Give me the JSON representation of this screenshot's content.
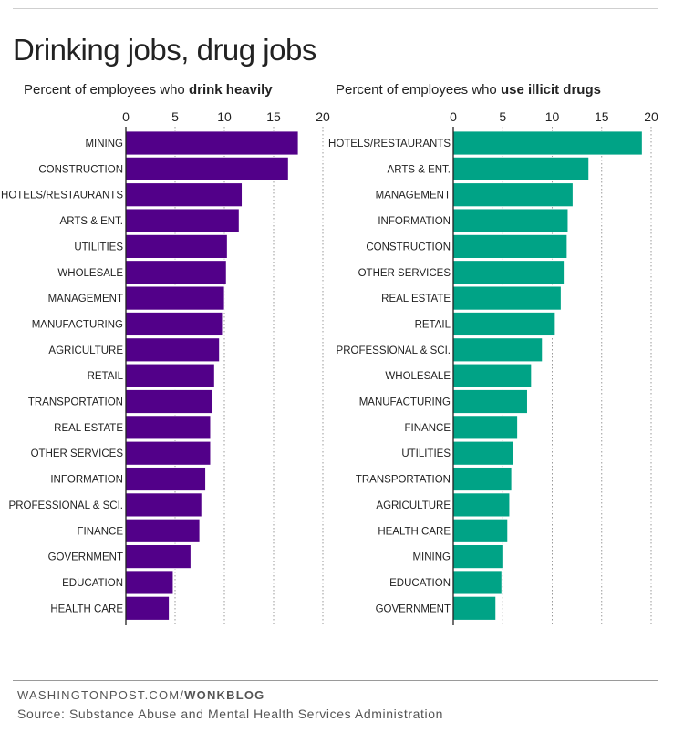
{
  "title": "Drinking jobs, drug jobs",
  "footer": {
    "site": "WASHINGTONPOST.COM/",
    "blog": "WONKBLOG",
    "source": "Source: Substance Abuse and Mental Health Services Administration"
  },
  "chart_data": [
    {
      "type": "bar",
      "orientation": "horizontal",
      "title_prefix": "Percent of employees who ",
      "title_emphasis": "drink heavily",
      "xlim": [
        0,
        20
      ],
      "xticks": [
        "0",
        "5",
        "10",
        "15",
        "20"
      ],
      "color": "#520089",
      "grid": true,
      "categories": [
        "MINING",
        "CONSTRUCTION",
        "HOTELS/RESTAURANTS",
        "ARTS & ENT.",
        "UTILITIES",
        "WHOLESALE",
        "MANAGEMENT",
        "MANUFACTURING",
        "AGRICULTURE",
        "RETAIL",
        "TRANSPORTATION",
        "REAL ESTATE",
        "OTHER SERVICES",
        "INFORMATION",
        "PROFESSIONAL & SCI.",
        "FINANCE",
        "GOVERNMENT",
        "EDUCATION",
        "HEALTH CARE"
      ],
      "values": [
        17.5,
        16.5,
        11.8,
        11.5,
        10.3,
        10.2,
        10.0,
        9.8,
        9.5,
        9.0,
        8.8,
        8.6,
        8.6,
        8.1,
        7.7,
        7.5,
        6.6,
        4.8,
        4.4
      ]
    },
    {
      "type": "bar",
      "orientation": "horizontal",
      "title_prefix": "Percent of employees who ",
      "title_emphasis": "use illicit drugs",
      "xlim": [
        0,
        20
      ],
      "xticks": [
        "0",
        "5",
        "10",
        "15",
        "20"
      ],
      "color": "#00a386",
      "grid": true,
      "categories": [
        "HOTELS/RESTAURANTS",
        "ARTS & ENT.",
        "MANAGEMENT",
        "INFORMATION",
        "CONSTRUCTION",
        "OTHER SERVICES",
        "REAL ESTATE",
        "RETAIL",
        "PROFESSIONAL & SCI.",
        "WHOLESALE",
        "MANUFACTURING",
        "FINANCE",
        "UTILITIES",
        "TRANSPORTATION",
        "AGRICULTURE",
        "HEALTH CARE",
        "MINING",
        "EDUCATION",
        "GOVERNMENT"
      ],
      "values": [
        19.1,
        13.7,
        12.1,
        11.6,
        11.5,
        11.2,
        10.9,
        10.3,
        9.0,
        7.9,
        7.5,
        6.5,
        6.1,
        5.9,
        5.7,
        5.5,
        5.0,
        4.9,
        4.3
      ]
    }
  ]
}
